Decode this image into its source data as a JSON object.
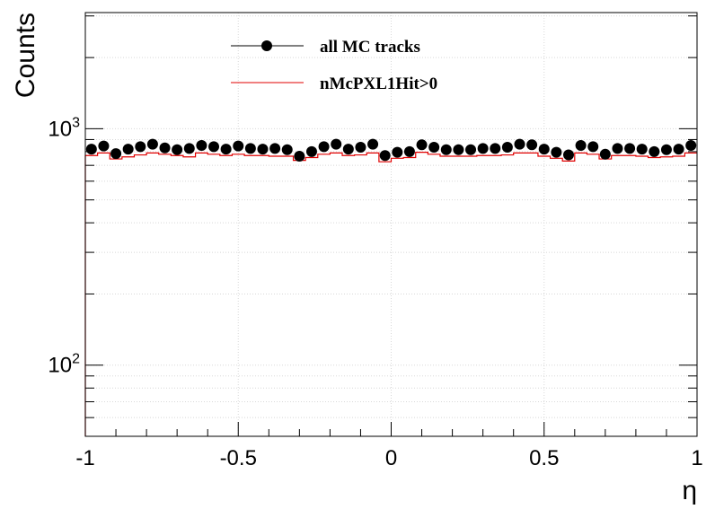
{
  "chart_data": {
    "type": "scatter",
    "title": "",
    "xlabel": "η",
    "ylabel": "Counts",
    "xlim": [
      -1,
      1
    ],
    "ylim": [
      50,
      3100
    ],
    "yscale": "log",
    "grid": true,
    "legend_placement": "top-center",
    "x_ticks": [
      "-1",
      "-0.5",
      "0",
      "0.5",
      "1"
    ],
    "y_ticks": [
      {
        "base": "10",
        "exp": "2",
        "value": 100
      },
      {
        "base": "10",
        "exp": "3",
        "value": 1000
      }
    ],
    "series": [
      {
        "name": "all MC tracks",
        "style": "markers",
        "color": "#000000",
        "x": [
          -0.98,
          -0.94,
          -0.9,
          -0.86,
          -0.82,
          -0.78,
          -0.74,
          -0.7,
          -0.66,
          -0.62,
          -0.58,
          -0.54,
          -0.5,
          -0.46,
          -0.42,
          -0.38,
          -0.34,
          -0.3,
          -0.26,
          -0.22,
          -0.18,
          -0.14,
          -0.1,
          -0.06,
          -0.02,
          0.02,
          0.06,
          0.1,
          0.14,
          0.18,
          0.22,
          0.26,
          0.3,
          0.34,
          0.38,
          0.42,
          0.46,
          0.5,
          0.54,
          0.58,
          0.62,
          0.66,
          0.7,
          0.74,
          0.78,
          0.82,
          0.86,
          0.9,
          0.94,
          0.98
        ],
        "y": [
          820,
          845,
          785,
          820,
          840,
          860,
          830,
          815,
          825,
          850,
          840,
          820,
          845,
          825,
          820,
          825,
          815,
          765,
          800,
          840,
          860,
          820,
          835,
          860,
          770,
          795,
          800,
          855,
          835,
          815,
          815,
          815,
          825,
          825,
          835,
          860,
          855,
          820,
          795,
          775,
          850,
          840,
          780,
          825,
          825,
          820,
          800,
          815,
          820,
          850
        ]
      },
      {
        "name": "nMcPXL1Hit>0",
        "style": "step",
        "color": "#e00000",
        "edges": [
          -1,
          -0.96,
          -0.92,
          -0.88,
          -0.84,
          -0.8,
          -0.76,
          -0.72,
          -0.68,
          -0.64,
          -0.6,
          -0.56,
          -0.52,
          -0.48,
          -0.44,
          -0.4,
          -0.36,
          -0.32,
          -0.28,
          -0.24,
          -0.2,
          -0.16,
          -0.12,
          -0.08,
          -0.04,
          0,
          0.04,
          0.08,
          0.12,
          0.16,
          0.2,
          0.24,
          0.28,
          0.32,
          0.36,
          0.4,
          0.44,
          0.48,
          0.52,
          0.56,
          0.6,
          0.64,
          0.68,
          0.72,
          0.76,
          0.8,
          0.84,
          0.88,
          0.92,
          0.96,
          1
        ],
        "y": [
          770,
          790,
          745,
          760,
          775,
          790,
          780,
          770,
          760,
          790,
          780,
          770,
          780,
          770,
          770,
          765,
          765,
          735,
          755,
          780,
          790,
          770,
          775,
          790,
          725,
          750,
          755,
          795,
          780,
          765,
          765,
          765,
          770,
          770,
          775,
          790,
          790,
          765,
          750,
          730,
          790,
          780,
          745,
          770,
          770,
          765,
          755,
          760,
          765,
          790
        ]
      }
    ]
  }
}
